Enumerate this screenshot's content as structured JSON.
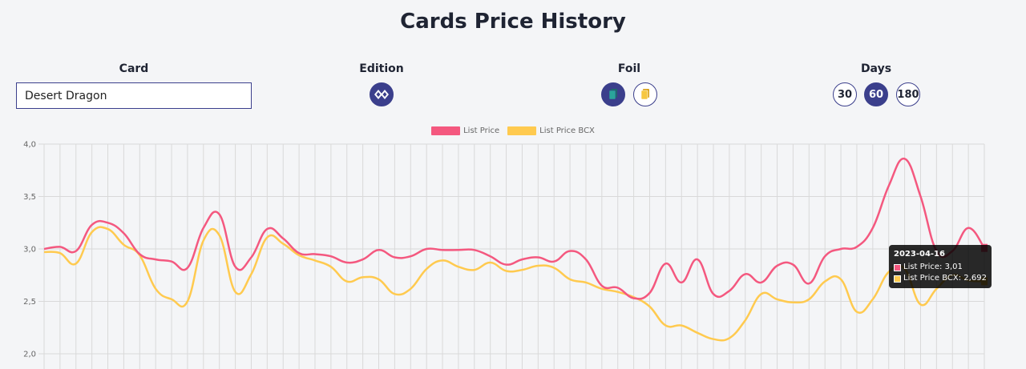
{
  "page": {
    "title": "Cards Price History"
  },
  "filters": {
    "card": {
      "label": "Card",
      "value": "Desert Dragon"
    },
    "edition": {
      "label": "Edition"
    },
    "foil": {
      "label": "Foil"
    },
    "days": {
      "label": "Days",
      "options": [
        "30",
        "60",
        "180"
      ],
      "selected": "60"
    }
  },
  "colors": {
    "accent": "#3b3f8c",
    "list_price": "#f4587f",
    "list_price_bcx": "#ffca4f"
  },
  "icons": {
    "edition": "edition-diamond-icon",
    "foil_regular": "regular-card-icon",
    "foil_gold": "gold-card-icon"
  },
  "tooltip": {
    "title": "2023-04-16",
    "rows": [
      "List Price: 3,01",
      "List Price BCX: 2,692"
    ]
  },
  "chart_data": {
    "type": "line",
    "legend_position": "top",
    "grid": true,
    "ylim": [
      2.0,
      4.0
    ],
    "yticks": [
      "4,0",
      "3,5",
      "3,0",
      "2,5",
      "2,0"
    ],
    "series": [
      {
        "name": "List Price",
        "values": [
          3.0,
          3.02,
          2.98,
          3.23,
          3.25,
          3.15,
          2.95,
          2.9,
          2.88,
          2.82,
          3.2,
          3.33,
          2.83,
          2.92,
          3.19,
          3.1,
          2.96,
          2.95,
          2.93,
          2.87,
          2.9,
          2.99,
          2.92,
          2.93,
          3.0,
          2.99,
          2.99,
          2.99,
          2.93,
          2.85,
          2.9,
          2.92,
          2.88,
          2.98,
          2.9,
          2.65,
          2.63,
          2.53,
          2.58,
          2.86,
          2.68,
          2.9,
          2.57,
          2.6,
          2.76,
          2.68,
          2.84,
          2.85,
          2.67,
          2.93,
          3.0,
          3.02,
          3.2,
          3.6,
          3.86,
          3.5,
          2.98,
          2.98,
          3.2,
          3.01
        ]
      },
      {
        "name": "List Price BCX",
        "values": [
          2.97,
          2.96,
          2.86,
          3.16,
          3.19,
          3.04,
          2.94,
          2.62,
          2.52,
          2.5,
          3.08,
          3.13,
          2.59,
          2.76,
          3.11,
          3.05,
          2.94,
          2.89,
          2.83,
          2.69,
          2.73,
          2.71,
          2.57,
          2.62,
          2.81,
          2.89,
          2.83,
          2.8,
          2.87,
          2.79,
          2.8,
          2.84,
          2.82,
          2.71,
          2.68,
          2.62,
          2.59,
          2.54,
          2.45,
          2.27,
          2.27,
          2.2,
          2.14,
          2.15,
          2.32,
          2.57,
          2.52,
          2.49,
          2.52,
          2.69,
          2.71,
          2.4,
          2.52,
          2.78,
          2.81,
          2.47,
          2.62,
          2.75,
          2.7,
          2.692
        ]
      }
    ]
  }
}
